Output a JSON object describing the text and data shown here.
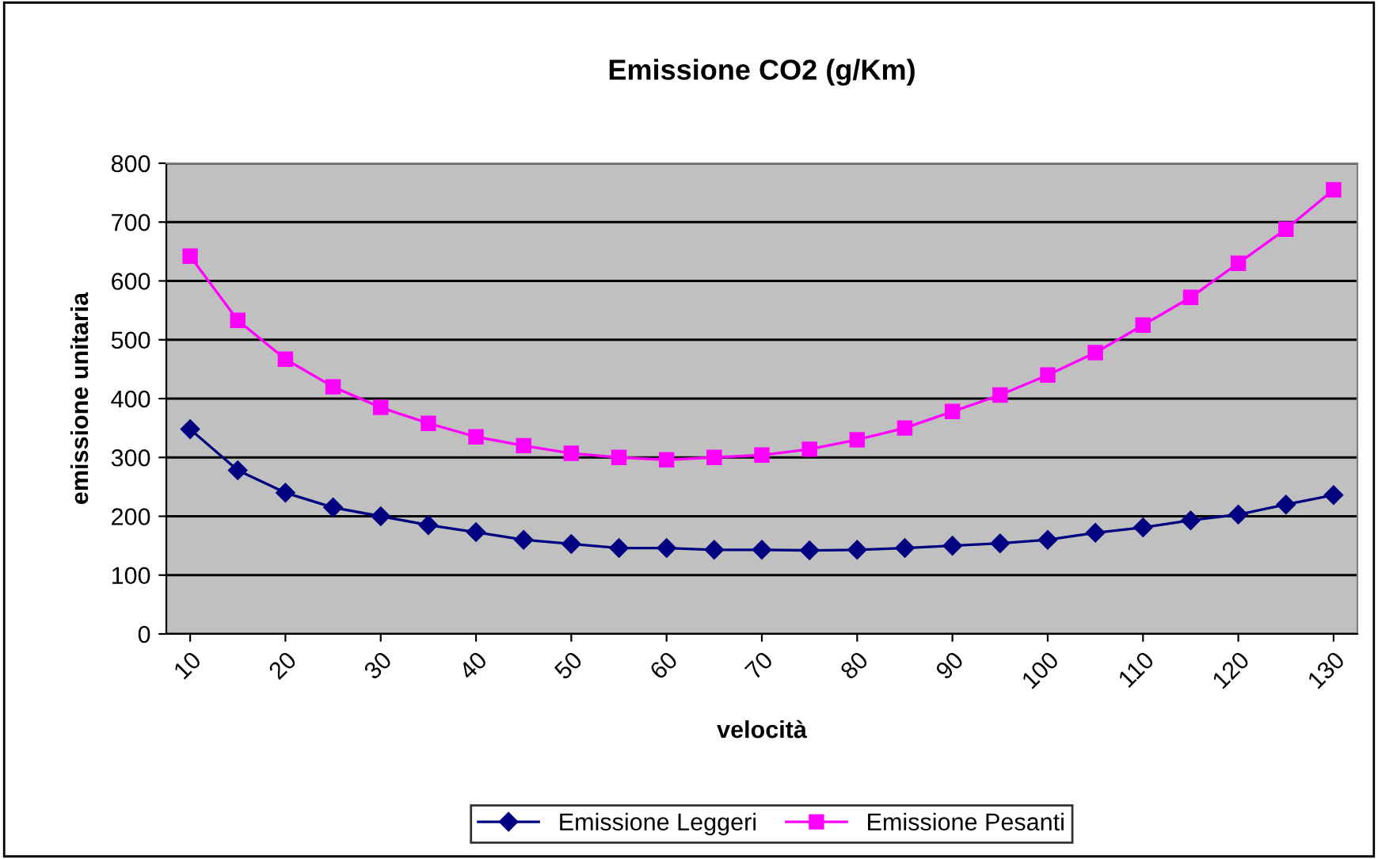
{
  "chart_data": {
    "type": "line",
    "title": "Emissione CO2 (g/Km)",
    "xlabel": "velocità",
    "ylabel": "emissione unitaria",
    "x": [
      10,
      15,
      20,
      25,
      30,
      35,
      40,
      45,
      50,
      55,
      60,
      65,
      70,
      75,
      80,
      85,
      90,
      95,
      100,
      105,
      110,
      115,
      120,
      125,
      130
    ],
    "series": [
      {
        "name": "Emissione Leggeri",
        "color": "#000080",
        "marker": "diamond",
        "values": [
          348,
          278,
          240,
          215,
          200,
          185,
          173,
          160,
          153,
          146,
          146,
          143,
          143,
          142,
          143,
          146,
          150,
          154,
          160,
          172,
          181,
          193,
          203,
          220,
          236
        ]
      },
      {
        "name": "Emissione Pesanti",
        "color": "#ff00ff",
        "marker": "square",
        "values": [
          642,
          533,
          467,
          420,
          385,
          358,
          335,
          320,
          307,
          300,
          296,
          300,
          304,
          314,
          330,
          350,
          378,
          406,
          440,
          478,
          525,
          572,
          630,
          688,
          755
        ]
      }
    ],
    "xlim": [
      7.5,
      132.5
    ],
    "xticks": [
      10,
      20,
      30,
      40,
      50,
      60,
      70,
      80,
      90,
      100,
      110,
      120,
      130
    ],
    "ylim": [
      0,
      800
    ],
    "yticks": [
      0,
      100,
      200,
      300,
      400,
      500,
      600,
      700,
      800
    ],
    "grid": "y",
    "legend": "bottom",
    "line_style": "solid"
  }
}
